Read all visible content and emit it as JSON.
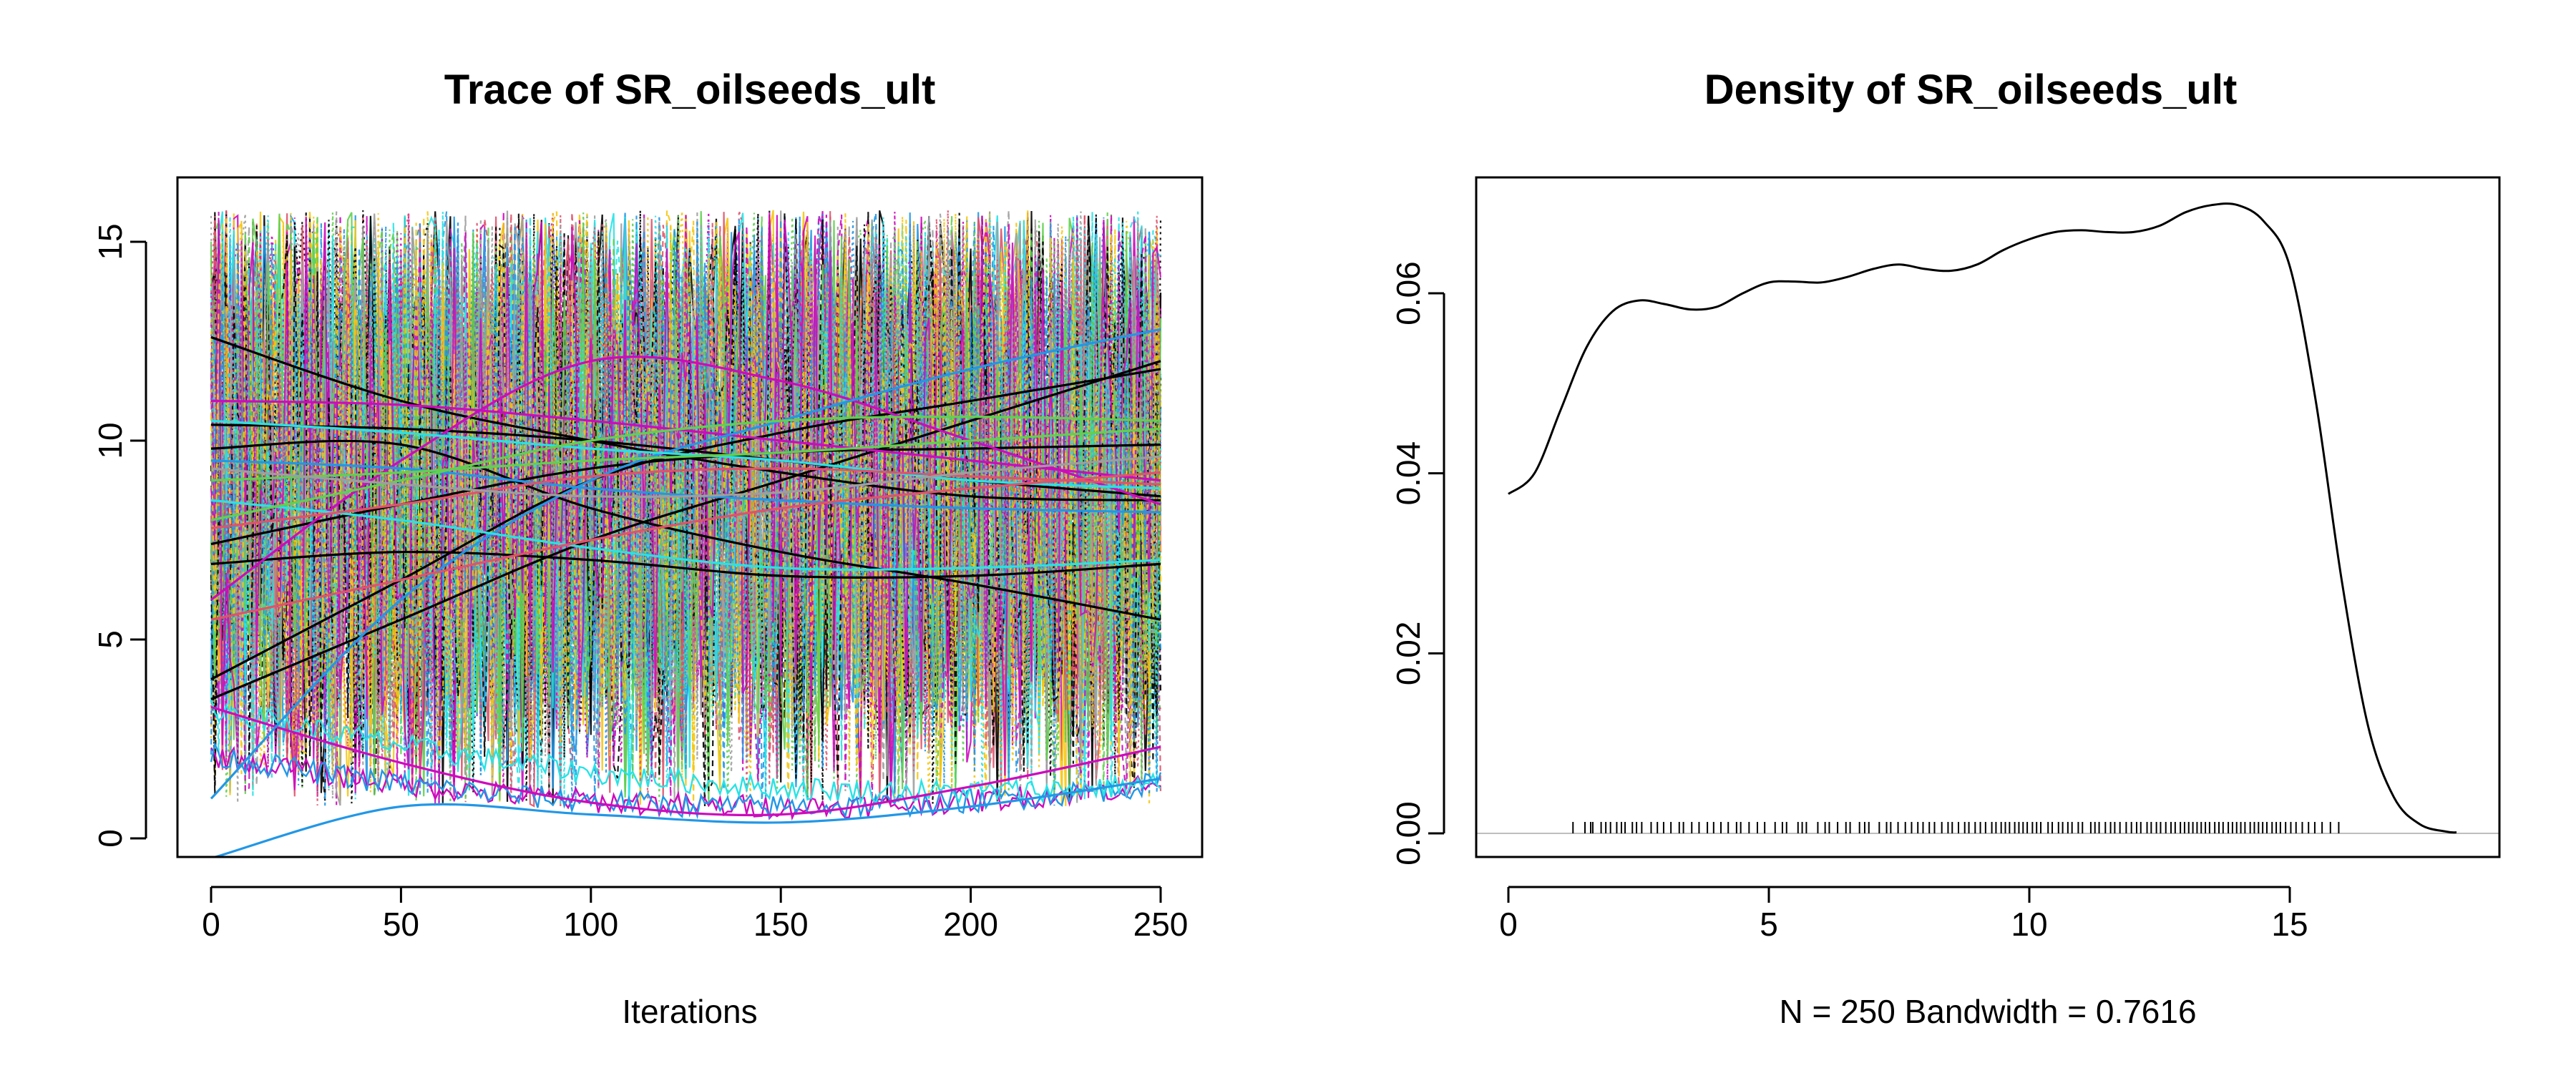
{
  "chart_data": [
    {
      "type": "line",
      "title": "Trace of SR_oilseeds_ult",
      "xlabel": "Iterations",
      "ylabel": "",
      "xlim": [
        0,
        250
      ],
      "ylim": [
        0,
        16
      ],
      "xticks": [
        "0",
        "50",
        "100",
        "150",
        "200",
        "250"
      ],
      "yticks": [
        "0",
        "5",
        "10",
        "15"
      ],
      "grid": false,
      "legend": "none",
      "n_iterations": 250,
      "colors": [
        "#000000",
        "#DF536B",
        "#61D04F",
        "#2297E6",
        "#28E2E5",
        "#CD0BBC",
        "#F5C710",
        "#9E9E9E"
      ],
      "series": [
        {
          "values_at": [
            0,
            50,
            100,
            150,
            200,
            250
          ],
          "values": [
            12.6,
            11.0,
            10.0,
            9.2,
            8.6,
            8.5
          ],
          "color": "#000000"
        },
        {
          "values_at": [
            0,
            50,
            100,
            150,
            200,
            250
          ],
          "values": [
            3.5,
            5.5,
            7.5,
            9.0,
            10.5,
            12.0
          ],
          "color": "#000000"
        },
        {
          "values_at": [
            0,
            50,
            100,
            150,
            200,
            250
          ],
          "values": [
            7.4,
            8.4,
            9.3,
            9.7,
            9.8,
            9.9
          ],
          "color": "#000000"
        },
        {
          "values_at": [
            0,
            50,
            100,
            150,
            200,
            250
          ],
          "values": [
            10.4,
            10.3,
            10.0,
            9.5,
            9.0,
            8.6
          ],
          "color": "#000000"
        },
        {
          "values_at": [
            0,
            50,
            100,
            150,
            200,
            250
          ],
          "values": [
            6.9,
            7.2,
            7.0,
            6.6,
            6.6,
            6.9
          ],
          "color": "#000000"
        },
        {
          "values_at": [
            0,
            50,
            100,
            150,
            200,
            250
          ],
          "values": [
            9.8,
            9.9,
            8.3,
            7.2,
            6.4,
            5.5
          ],
          "color": "#000000"
        },
        {
          "values_at": [
            0,
            50,
            100,
            150,
            200,
            250
          ],
          "values": [
            4.0,
            6.5,
            9.0,
            10.2,
            11.0,
            11.8
          ],
          "color": "#000000"
        },
        {
          "values_at": [
            0,
            50,
            100,
            150,
            200,
            250
          ],
          "values": [
            3.3,
            1.9,
            0.9,
            0.6,
            1.3,
            2.3
          ],
          "color": "#CD0BBC"
        },
        {
          "values_at": [
            0,
            50,
            100,
            150,
            200,
            250
          ],
          "values": [
            6.0,
            9.5,
            12.0,
            11.5,
            10.0,
            8.4
          ],
          "color": "#CD0BBC"
        },
        {
          "values_at": [
            0,
            50,
            100,
            150,
            200,
            250
          ],
          "values": [
            11.0,
            10.9,
            10.5,
            10.0,
            9.5,
            9.0
          ],
          "color": "#CD0BBC"
        },
        {
          "values_at": [
            0,
            50,
            100,
            150,
            200,
            250
          ],
          "values": [
            -0.5,
            0.8,
            0.6,
            0.4,
            0.8,
            1.5
          ],
          "color": "#2297E6"
        },
        {
          "values_at": [
            0,
            50,
            100,
            150,
            200,
            250
          ],
          "values": [
            1.0,
            6.0,
            9.0,
            10.5,
            11.8,
            12.8
          ],
          "color": "#2297E6"
        },
        {
          "values_at": [
            0,
            50,
            100,
            150,
            200,
            250
          ],
          "values": [
            9.5,
            9.3,
            8.8,
            8.5,
            8.3,
            8.2
          ],
          "color": "#2297E6"
        },
        {
          "values_at": [
            0,
            50,
            100,
            150,
            200,
            250
          ],
          "values": [
            10.5,
            10.2,
            9.8,
            9.5,
            9.0,
            8.8
          ],
          "color": "#28E2E5"
        },
        {
          "values_at": [
            0,
            50,
            100,
            150,
            200,
            250
          ],
          "values": [
            8.5,
            8.0,
            7.3,
            6.8,
            6.8,
            7.0
          ],
          "color": "#28E2E5"
        },
        {
          "values_at": [
            0,
            50,
            100,
            150,
            200,
            250
          ],
          "values": [
            8.0,
            9.0,
            10.0,
            10.5,
            10.6,
            10.5
          ],
          "color": "#61D04F"
        },
        {
          "values_at": [
            0,
            50,
            100,
            150,
            200,
            250
          ],
          "values": [
            9.0,
            9.2,
            9.5,
            9.7,
            10.0,
            10.3
          ],
          "color": "#61D04F"
        },
        {
          "values_at": [
            0,
            50,
            100,
            150,
            200,
            250
          ],
          "values": [
            7.8,
            8.4,
            9.1,
            9.3,
            9.1,
            8.9
          ],
          "color": "#DF536B"
        },
        {
          "values_at": [
            0,
            50,
            100,
            150,
            200,
            250
          ],
          "values": [
            5.5,
            6.5,
            7.5,
            8.3,
            8.8,
            9.2
          ],
          "color": "#DF536B"
        },
        {
          "values_at": [
            0,
            50,
            100,
            150,
            200,
            250
          ],
          "values": [
            9.3,
            8.9,
            8.6,
            8.7,
            9.2,
            9.6
          ],
          "color": "#9E9E9E"
        }
      ]
    },
    {
      "type": "line",
      "title": "Density of SR_oilseeds_ult",
      "xlabel": "N = 250   Bandwidth = 0.7616",
      "ylabel": "",
      "xlim": [
        0,
        18.2
      ],
      "ylim": [
        0,
        0.07
      ],
      "xticks": [
        "0",
        "5",
        "10",
        "15"
      ],
      "yticks": [
        "0.00",
        "0.02",
        "0.04",
        "0.06"
      ],
      "grid": false,
      "legend": "none",
      "x": [
        0.0,
        0.5,
        1.0,
        1.5,
        2.0,
        2.5,
        3.0,
        3.5,
        4.0,
        4.5,
        5.0,
        5.5,
        6.0,
        6.5,
        7.0,
        7.5,
        8.0,
        8.5,
        9.0,
        9.5,
        10.0,
        10.5,
        11.0,
        11.5,
        12.0,
        12.5,
        13.0,
        13.5,
        14.0,
        14.5,
        15.0,
        15.5,
        16.0,
        16.5,
        17.0,
        17.5,
        18.0,
        18.2
      ],
      "y": [
        0.0377,
        0.04,
        0.047,
        0.054,
        0.058,
        0.0592,
        0.0588,
        0.0582,
        0.0585,
        0.06,
        0.0612,
        0.0613,
        0.0612,
        0.0618,
        0.0627,
        0.0632,
        0.0627,
        0.0625,
        0.0632,
        0.0648,
        0.066,
        0.0668,
        0.067,
        0.0668,
        0.0668,
        0.0675,
        0.069,
        0.0698,
        0.0698,
        0.068,
        0.063,
        0.048,
        0.028,
        0.012,
        0.004,
        0.001,
        0.0002,
        0.0001
      ],
      "rug": [
        1.24,
        1.47,
        1.58,
        1.62,
        1.78,
        1.87,
        1.96,
        2.08,
        2.17,
        2.24,
        2.38,
        2.46,
        2.56,
        2.74,
        2.86,
        2.98,
        3.12,
        3.28,
        3.36,
        3.52,
        3.66,
        3.82,
        3.94,
        4.08,
        4.22,
        4.38,
        4.46,
        4.62,
        4.78,
        4.92,
        5.12,
        5.26,
        5.34,
        5.56,
        5.64,
        5.72,
        5.94,
        6.08,
        6.16,
        6.32,
        6.48,
        6.56,
        6.74,
        6.84,
        6.92,
        7.12,
        7.26,
        7.34,
        7.48,
        7.62,
        7.74,
        7.86,
        7.96,
        8.08,
        8.18,
        8.32,
        8.44,
        8.52,
        8.64,
        8.76,
        8.84,
        8.96,
        9.06,
        9.16,
        9.28,
        9.36,
        9.46,
        9.54,
        9.62,
        9.72,
        9.8,
        9.88,
        9.96,
        10.06,
        10.14,
        10.22,
        10.36,
        10.44,
        10.56,
        10.64,
        10.74,
        10.82,
        10.94,
        11.02,
        11.18,
        11.26,
        11.34,
        11.46,
        11.56,
        11.64,
        11.74,
        11.86,
        11.96,
        12.06,
        12.14,
        12.26,
        12.34,
        12.44,
        12.52,
        12.62,
        12.72,
        12.8,
        12.9,
        12.98,
        13.06,
        13.14,
        13.22,
        13.3,
        13.38,
        13.46,
        13.56,
        13.64,
        13.72,
        13.82,
        13.9,
        13.98,
        14.06,
        14.14,
        14.24,
        14.32,
        14.4,
        14.48,
        14.56,
        14.66,
        14.74,
        14.82,
        14.92,
        15.02,
        15.12,
        15.24,
        15.36,
        15.48,
        15.62,
        15.78,
        15.94
      ]
    }
  ]
}
